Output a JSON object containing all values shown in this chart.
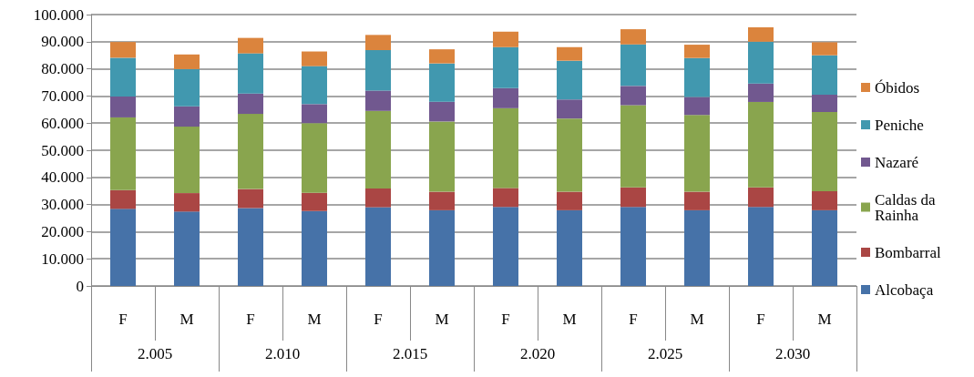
{
  "chart_data": {
    "type": "bar",
    "stacked": true,
    "categories": [
      "F",
      "M",
      "F",
      "M",
      "F",
      "M",
      "F",
      "M",
      "F",
      "M",
      "F",
      "M"
    ],
    "annotations": [
      "2.005",
      "2.010",
      "2.015",
      "2.020",
      "2.025",
      "2.030"
    ],
    "series": [
      {
        "name": "Alcobaça",
        "color": "#4672a8",
        "values": [
          28400,
          27400,
          28700,
          27600,
          29000,
          27900,
          29100,
          27900,
          29100,
          27900,
          29100,
          27900
        ]
      },
      {
        "name": "Bombarral",
        "color": "#aa4644",
        "values": [
          6900,
          6800,
          7000,
          6700,
          6900,
          6800,
          7000,
          6800,
          7200,
          6800,
          7200,
          7000
        ]
      },
      {
        "name": "Caldas da Rainha",
        "color": "#89a54e",
        "values": [
          26800,
          24500,
          27700,
          25700,
          28600,
          25900,
          29400,
          27000,
          30300,
          28300,
          31500,
          29200
        ]
      },
      {
        "name": "Nazaré",
        "color": "#71588f",
        "values": [
          7700,
          7500,
          7500,
          7000,
          7500,
          7300,
          7400,
          7000,
          7100,
          6600,
          6800,
          6400
        ]
      },
      {
        "name": "Peniche",
        "color": "#4198af",
        "values": [
          14300,
          13700,
          14800,
          14000,
          14900,
          14100,
          15100,
          14300,
          15300,
          14400,
          15400,
          14500
        ]
      },
      {
        "name": "Óbidos",
        "color": "#db843d",
        "values": [
          5800,
          5400,
          5700,
          5400,
          5600,
          5200,
          5700,
          5000,
          5600,
          4900,
          5300,
          4800
        ]
      }
    ],
    "ylim": [
      0,
      100000
    ],
    "yticks": [
      {
        "value": 0,
        "label": "0"
      },
      {
        "value": 10000,
        "label": "10.000"
      },
      {
        "value": 20000,
        "label": "20.000"
      },
      {
        "value": 30000,
        "label": "30.000"
      },
      {
        "value": 40000,
        "label": "40.000"
      },
      {
        "value": 50000,
        "label": "50.000"
      },
      {
        "value": 60000,
        "label": "60.000"
      },
      {
        "value": 70000,
        "label": "70.000"
      },
      {
        "value": 80000,
        "label": "80.000"
      },
      {
        "value": 90000,
        "label": "90.000"
      },
      {
        "value": 100000,
        "label": "100.000"
      }
    ],
    "grid": "y",
    "legend": "right"
  }
}
